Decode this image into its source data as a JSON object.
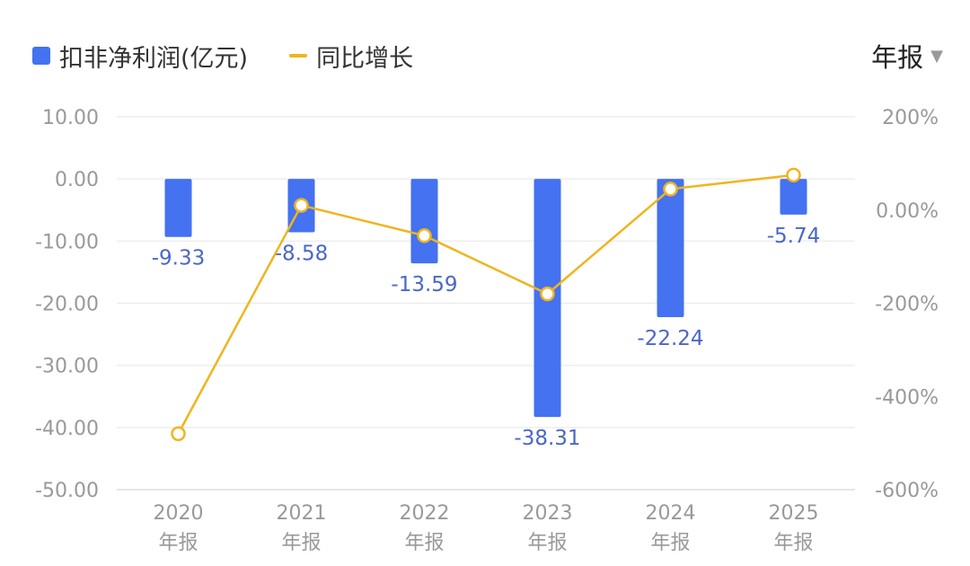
{
  "legend": {
    "bar_label": "扣非净利润(亿元)",
    "line_label": "同比增长",
    "bar_color": "#4472f0",
    "line_color": "#f0b41e"
  },
  "period_selector": {
    "label": "年报",
    "caret": "▼"
  },
  "value_label_color": "#4a67c8",
  "chart_data": {
    "type": "bar",
    "categories": [
      "2020",
      "2021",
      "2022",
      "2023",
      "2024",
      "2025"
    ],
    "category_sublabel": "年报",
    "series": [
      {
        "name": "扣非净利润(亿元)",
        "type": "bar",
        "axis": "left",
        "values": [
          -9.33,
          -8.58,
          -13.59,
          -38.31,
          -22.24,
          -5.74
        ],
        "labels": [
          "-9.33",
          "-8.58",
          "-13.59",
          "-38.31",
          "-22.24",
          "-5.74"
        ]
      },
      {
        "name": "同比增长",
        "type": "line",
        "axis": "right",
        "values": [
          -480,
          10,
          -55,
          -180,
          45,
          75
        ]
      }
    ],
    "left_axis": {
      "ylim": [
        -50,
        10
      ],
      "ticks": [
        10,
        0,
        -10,
        -20,
        -30,
        -40,
        -50
      ],
      "tick_labels": [
        "10.00",
        "0.00",
        "-10.00",
        "-20.00",
        "-30.00",
        "-40.00",
        "-50.00"
      ]
    },
    "right_axis": {
      "ylim": [
        -600,
        200
      ],
      "ticks": [
        200,
        0,
        -200,
        -400,
        -600
      ],
      "tick_labels": [
        "200%",
        "0.00%",
        "-200%",
        "-400%",
        "-600%"
      ]
    },
    "grid": true,
    "legend_position": "top-left"
  }
}
